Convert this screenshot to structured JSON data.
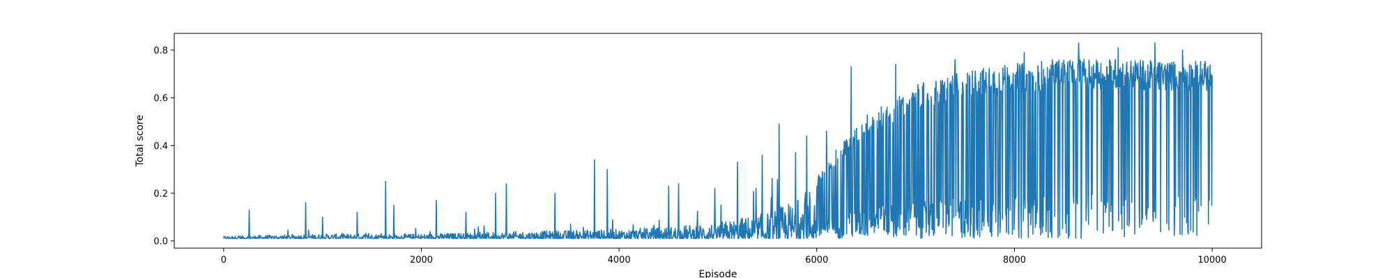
{
  "chart_data": {
    "type": "line",
    "title": "",
    "xlabel": "Episode",
    "ylabel": "Total score",
    "xlim": [
      -500,
      10500
    ],
    "ylim": [
      -0.03,
      0.87
    ],
    "x_ticks": [
      0,
      2000,
      4000,
      6000,
      8000,
      10000
    ],
    "x_tick_labels": [
      "0",
      "2000",
      "4000",
      "6000",
      "8000",
      "10000"
    ],
    "y_ticks": [
      0.0,
      0.2,
      0.4,
      0.6,
      0.8
    ],
    "y_tick_labels": [
      "0.0",
      "0.2",
      "0.4",
      "0.6",
      "0.8"
    ],
    "grid": false,
    "legend": "none",
    "series_color": "#1f77b4",
    "series": [
      {
        "episodes_x": [
          0,
          10000
        ],
        "low_envelope": {
          "x": [
            0,
            1000,
            2000,
            3000,
            4000,
            5000,
            5500,
            6000,
            6200,
            6400,
            7000,
            8000,
            9000,
            10000
          ],
          "y": [
            0.01,
            0.01,
            0.01,
            0.01,
            0.01,
            0.01,
            0.01,
            0.01,
            0.01,
            0.01,
            0.01,
            0.01,
            0.01,
            0.02
          ]
        },
        "typical_envelope": {
          "x": [
            0,
            1000,
            2000,
            3000,
            4000,
            4500,
            5000,
            5500,
            5800,
            6000,
            6200,
            6500,
            7000,
            7500,
            8000,
            8500,
            9000,
            9500,
            10000
          ],
          "y": [
            0.02,
            0.03,
            0.03,
            0.04,
            0.05,
            0.06,
            0.08,
            0.12,
            0.18,
            0.26,
            0.38,
            0.52,
            0.64,
            0.7,
            0.73,
            0.75,
            0.75,
            0.74,
            0.74
          ]
        },
        "spikes": [
          {
            "x": 260,
            "y": 0.13
          },
          {
            "x": 830,
            "y": 0.16
          },
          {
            "x": 1000,
            "y": 0.1
          },
          {
            "x": 1350,
            "y": 0.12
          },
          {
            "x": 1640,
            "y": 0.25
          },
          {
            "x": 1720,
            "y": 0.15
          },
          {
            "x": 2150,
            "y": 0.17
          },
          {
            "x": 2450,
            "y": 0.12
          },
          {
            "x": 2750,
            "y": 0.2
          },
          {
            "x": 2860,
            "y": 0.24
          },
          {
            "x": 3350,
            "y": 0.2
          },
          {
            "x": 3750,
            "y": 0.34
          },
          {
            "x": 3880,
            "y": 0.3
          },
          {
            "x": 4500,
            "y": 0.23
          },
          {
            "x": 4600,
            "y": 0.24
          },
          {
            "x": 4970,
            "y": 0.22
          },
          {
            "x": 5200,
            "y": 0.33
          },
          {
            "x": 5450,
            "y": 0.36
          },
          {
            "x": 5620,
            "y": 0.49
          },
          {
            "x": 5900,
            "y": 0.44
          },
          {
            "x": 6100,
            "y": 0.46
          },
          {
            "x": 6350,
            "y": 0.73
          },
          {
            "x": 6800,
            "y": 0.74
          },
          {
            "x": 7400,
            "y": 0.76
          },
          {
            "x": 8100,
            "y": 0.79
          },
          {
            "x": 8650,
            "y": 0.83
          },
          {
            "x": 9050,
            "y": 0.81
          },
          {
            "x": 9420,
            "y": 0.83
          },
          {
            "x": 9700,
            "y": 0.8
          }
        ]
      }
    ]
  }
}
